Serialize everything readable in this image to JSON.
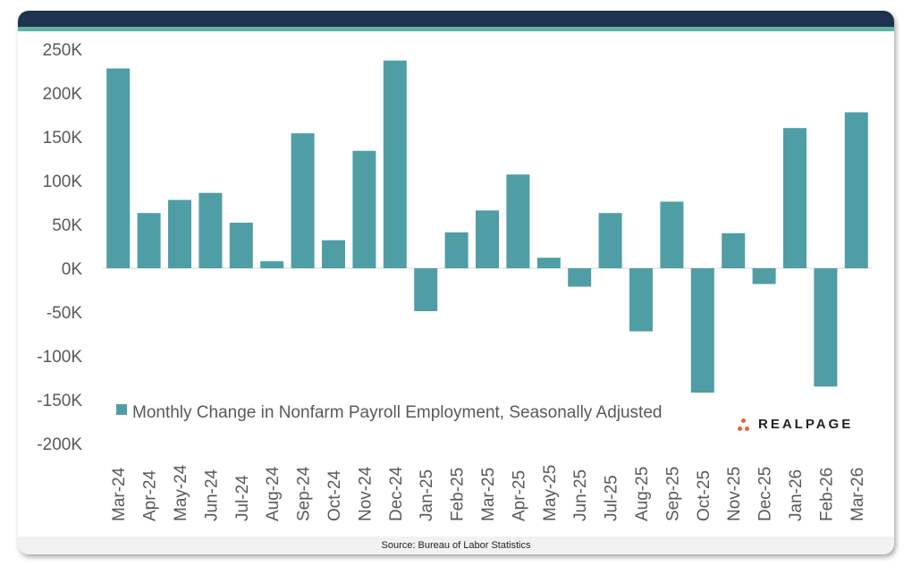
{
  "chart_data": {
    "type": "bar",
    "categories": [
      "Mar-24",
      "Apr-24",
      "May-24",
      "Jun-24",
      "Jul-24",
      "Aug-24",
      "Sep-24",
      "Oct-24",
      "Nov-24",
      "Dec-24",
      "Jan-25",
      "Feb-25",
      "Mar-25",
      "Apr-25",
      "May-25",
      "Jun-25",
      "Jul-25",
      "Aug-25",
      "Sep-25",
      "Oct-25",
      "Nov-25",
      "Dec-25",
      "Jan-26",
      "Feb-26",
      "Mar-26"
    ],
    "series": [
      {
        "name": "Monthly Change in Nonfarm Payroll Employment, Seasonally Adjusted",
        "values": [
          228,
          63,
          78,
          86,
          52,
          8,
          154,
          32,
          134,
          237,
          -49,
          41,
          66,
          107,
          12,
          -21,
          63,
          -72,
          76,
          -142,
          40,
          -18,
          160,
          -135,
          178
        ]
      }
    ],
    "yticks": [
      "250K",
      "200K",
      "150K",
      "100K",
      "50K",
      "0K",
      "-50K",
      "-100K",
      "-150K",
      "-200K"
    ],
    "ylim": [
      -200,
      250
    ],
    "yunit": "thousands",
    "grid": false,
    "legend_position": "bottom-left",
    "bar_color": "#4f9ea5"
  },
  "source": "Source: Bureau of Labor Statistics",
  "logo": {
    "text": "REALPAGE",
    "dot_color": "#e8613c"
  },
  "colors": {
    "header": "#1e3350",
    "accent_strip": "#5fb3a1"
  }
}
